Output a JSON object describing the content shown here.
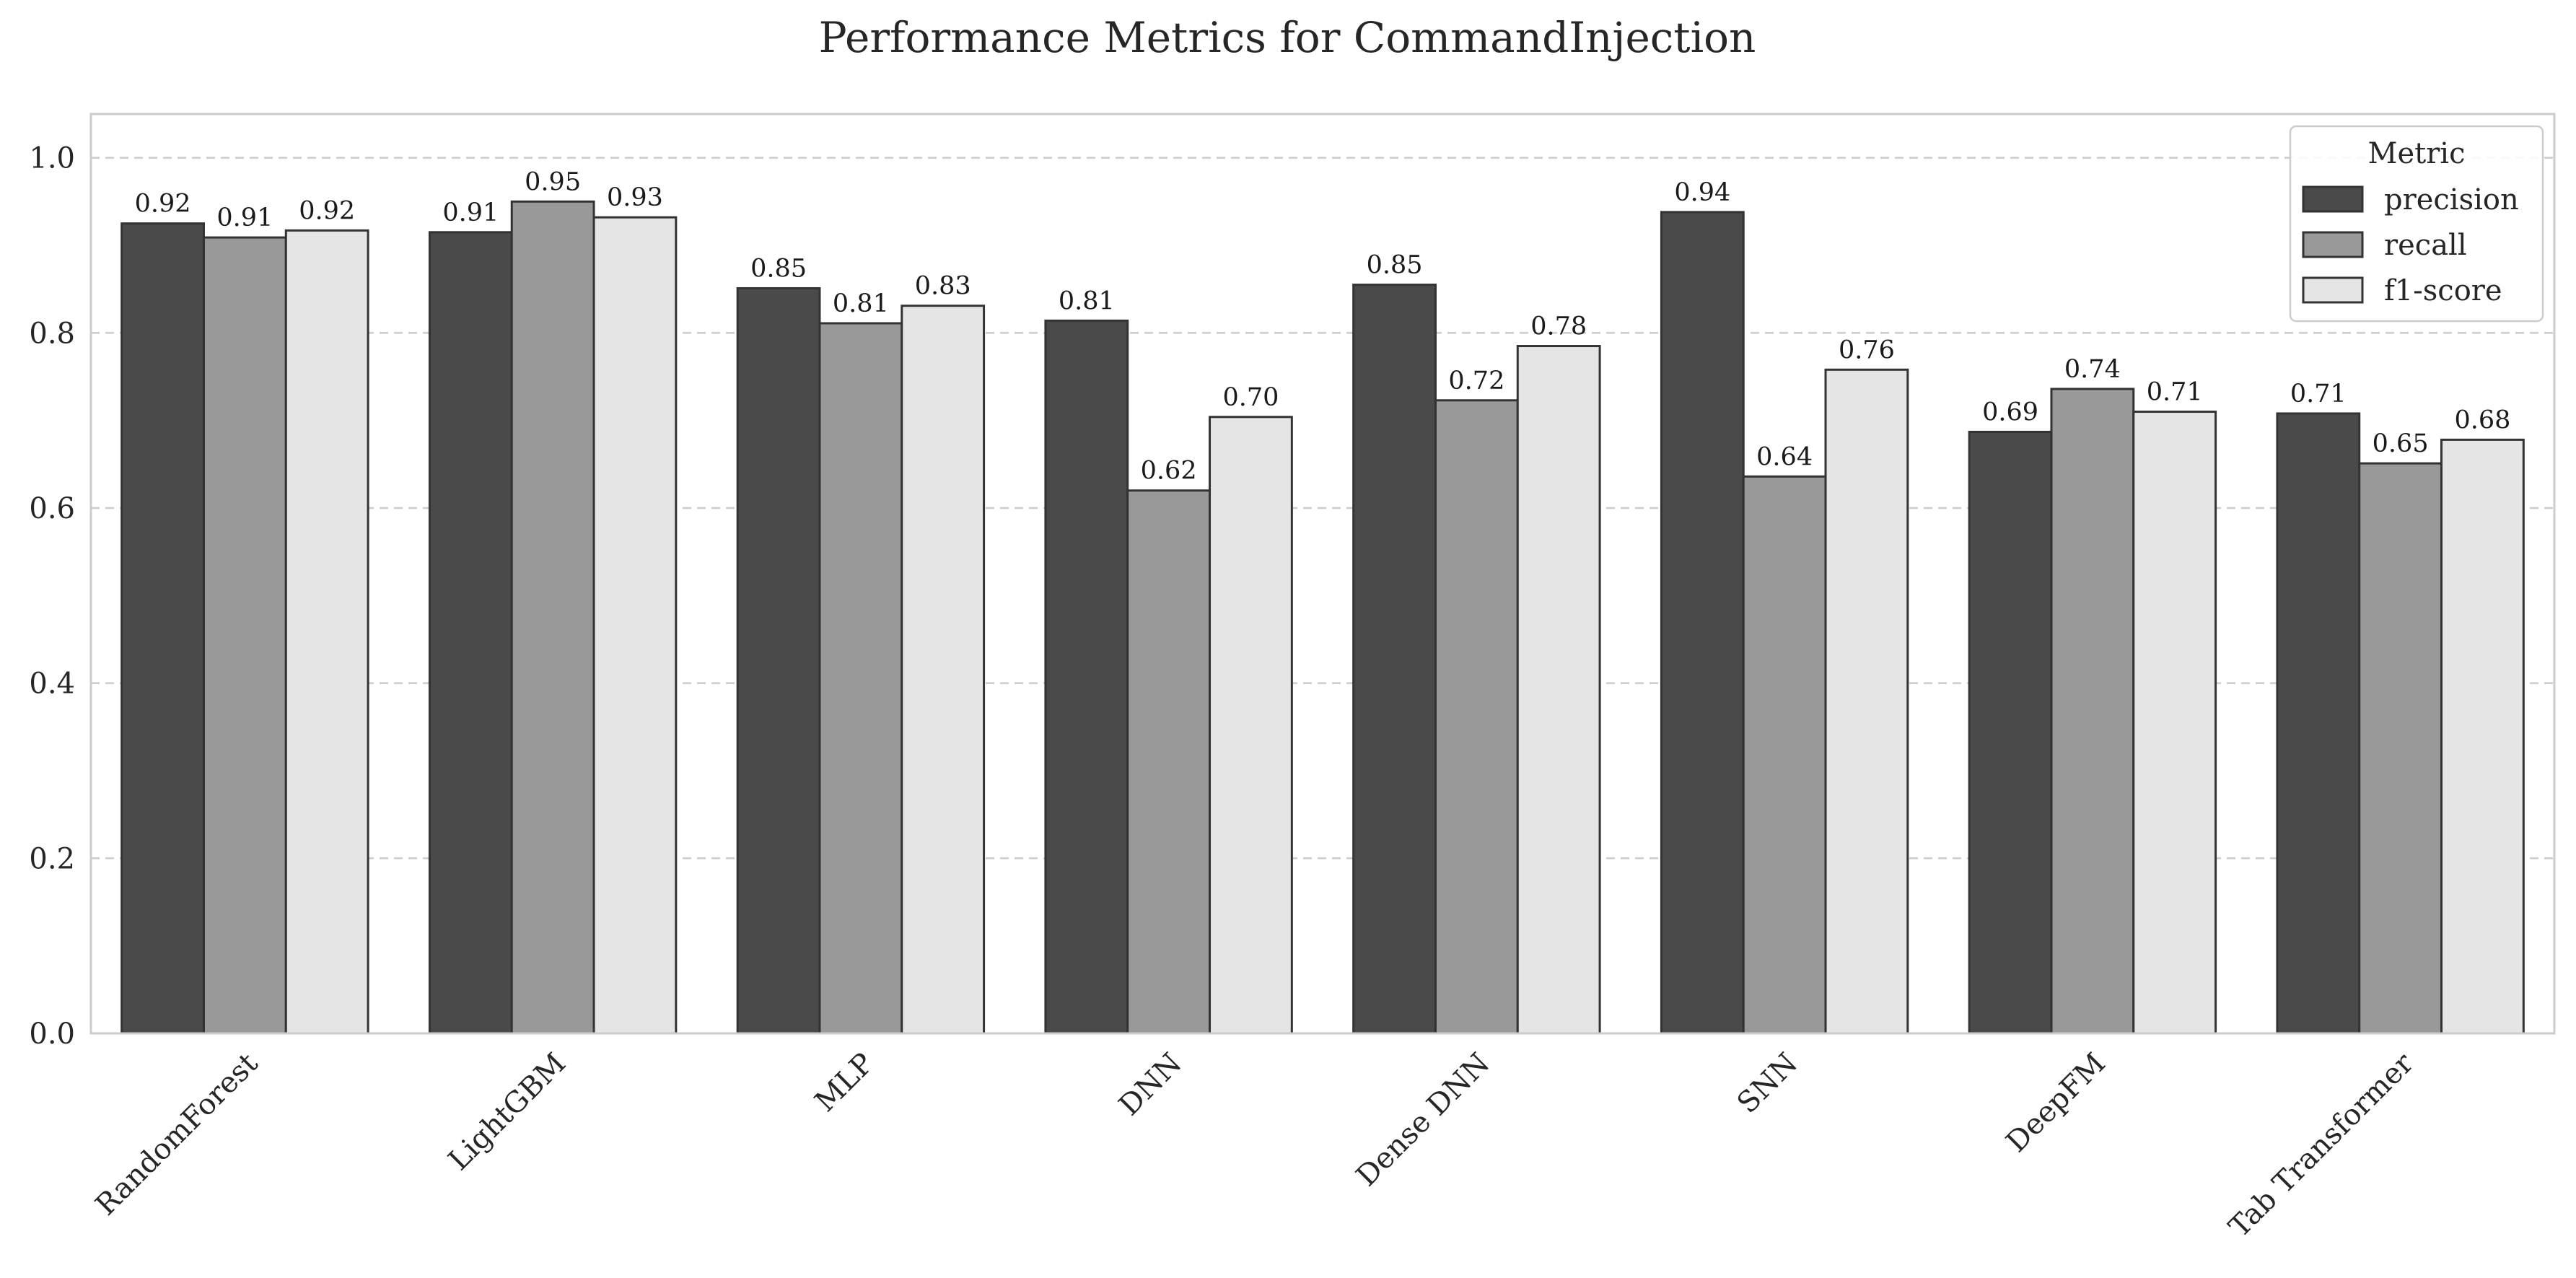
{
  "chart_data": {
    "type": "bar",
    "title": "Performance Metrics for CommandInjection",
    "xlabel": "",
    "ylabel": "",
    "ylim": [
      0,
      1.05
    ],
    "yticks": [
      "0.0",
      "0.2",
      "0.4",
      "0.6",
      "0.8",
      "1.0"
    ],
    "grid": "horizontal dashed",
    "categories": [
      "RandomForest",
      "LightGBM",
      "MLP",
      "DNN",
      "Dense DNN",
      "SNN",
      "DeepFM",
      "Tab Transformer"
    ],
    "legend": {
      "title": "Metric",
      "placement": "top-right"
    },
    "series": [
      {
        "name": "precision",
        "color": "#4a4a4a",
        "values": [
          0.925,
          0.915,
          0.851,
          0.814,
          0.855,
          0.938,
          0.687,
          0.708
        ],
        "labels": [
          "0.92",
          "0.91",
          "0.85",
          "0.81",
          "0.85",
          "0.94",
          "0.69",
          "0.71"
        ]
      },
      {
        "name": "recall",
        "color": "#999999",
        "values": [
          0.909,
          0.95,
          0.811,
          0.62,
          0.723,
          0.636,
          0.736,
          0.651
        ],
        "labels": [
          "0.91",
          "0.95",
          "0.81",
          "0.62",
          "0.72",
          "0.64",
          "0.74",
          "0.65"
        ]
      },
      {
        "name": "f1-score",
        "color": "#e5e5e5",
        "values": [
          0.917,
          0.932,
          0.831,
          0.704,
          0.785,
          0.758,
          0.71,
          0.678
        ],
        "labels": [
          "0.92",
          "0.93",
          "0.83",
          "0.70",
          "0.78",
          "0.76",
          "0.71",
          "0.68"
        ]
      }
    ]
  }
}
